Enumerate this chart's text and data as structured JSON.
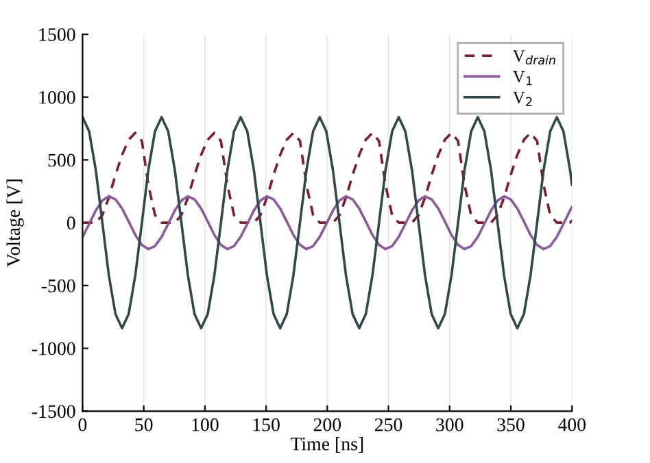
{
  "chart_data": {
    "type": "line",
    "xlabel": "Time [ns]",
    "ylabel": "Voltage [V]",
    "x": [
      0,
      5.4,
      10.8,
      16.2,
      21.5,
      26.9,
      32.3,
      37.7,
      43.1,
      48.5,
      53.8,
      59.2,
      64.6,
      70,
      75.4,
      80.8,
      86.1,
      91.5,
      96.9,
      102.3,
      107.7,
      113.1,
      118.4,
      123.8,
      129.2,
      134.6,
      140,
      145.4,
      150.7,
      156.1,
      161.5,
      166.9,
      172.3,
      177.7,
      183,
      188.4,
      193.8,
      199.2,
      204.6,
      210,
      215.3,
      220.7,
      226.1,
      231.5,
      236.9,
      242.3,
      247.6,
      253,
      258.4,
      263.8,
      269.2,
      274.6,
      279.9,
      285.3,
      290.7,
      296.1,
      301.5,
      306.9,
      312.2,
      317.6,
      323,
      328.4,
      333.8,
      339.2,
      344.5,
      349.9,
      355.3,
      360.7,
      366.1,
      371.5,
      376.8,
      382.2,
      387.6,
      393,
      398.4,
      400
    ],
    "series": [
      {
        "name": "V$_{drain}$",
        "color": "#7b1f2b",
        "line_style": "dashed",
        "values": [
          0,
          0,
          0,
          60,
          200,
          380,
          540,
          660,
          715,
          650,
          300,
          60,
          0,
          0,
          0,
          60,
          200,
          380,
          540,
          660,
          715,
          650,
          300,
          60,
          0,
          0,
          0,
          60,
          200,
          380,
          540,
          660,
          715,
          650,
          300,
          60,
          0,
          0,
          0,
          60,
          200,
          380,
          540,
          660,
          715,
          650,
          300,
          60,
          0,
          0,
          0,
          60,
          200,
          380,
          540,
          660,
          715,
          650,
          300,
          60,
          0,
          0,
          0,
          60,
          200,
          380,
          540,
          660,
          715,
          650,
          300,
          60,
          0,
          0,
          0,
          20
        ]
      },
      {
        "name": "V$_{1}$",
        "color": "#8a5a9a",
        "line_style": "solid",
        "values": [
          -113,
          -10,
          97,
          177,
          210,
          186,
          113,
          10,
          -97,
          -177,
          -210,
          -186,
          -113,
          -10,
          97,
          177,
          210,
          186,
          113,
          10,
          -97,
          -177,
          -210,
          -186,
          -113,
          -10,
          97,
          177,
          210,
          186,
          113,
          10,
          -97,
          -177,
          -210,
          -186,
          -113,
          -10,
          97,
          177,
          210,
          186,
          113,
          10,
          -97,
          -177,
          -210,
          -186,
          -113,
          -10,
          97,
          177,
          210,
          186,
          113,
          10,
          -97,
          -177,
          -210,
          -186,
          -113,
          -10,
          97,
          177,
          210,
          186,
          113,
          10,
          -97,
          -177,
          -210,
          -186,
          -113,
          -10,
          97,
          125
        ]
      },
      {
        "name": "V$_{2}$",
        "color": "#2f4a4a",
        "line_style": "solid",
        "values": [
          840,
          727,
          420,
          0,
          -420,
          -727,
          -840,
          -727,
          -420,
          0,
          420,
          727,
          840,
          727,
          420,
          0,
          -420,
          -727,
          -840,
          -727,
          -420,
          0,
          420,
          727,
          840,
          727,
          420,
          0,
          -420,
          -727,
          -840,
          -727,
          -420,
          0,
          420,
          727,
          840,
          727,
          420,
          0,
          -420,
          -727,
          -840,
          -727,
          -420,
          0,
          420,
          727,
          840,
          727,
          420,
          0,
          -420,
          -727,
          -840,
          -727,
          -420,
          0,
          420,
          727,
          840,
          727,
          420,
          0,
          -420,
          -727,
          -840,
          -727,
          -420,
          0,
          420,
          727,
          840,
          727,
          420,
          300
        ]
      }
    ],
    "xlim": [
      0,
      400
    ],
    "xticks": [
      0,
      50,
      100,
      150,
      200,
      250,
      300,
      350,
      400
    ],
    "ylim": [
      -1500,
      1500
    ],
    "yticks": [
      1500,
      1000,
      500,
      0,
      -500,
      -1000,
      -1500
    ],
    "grid": "x",
    "legend": "top right",
    "marker": "none"
  }
}
